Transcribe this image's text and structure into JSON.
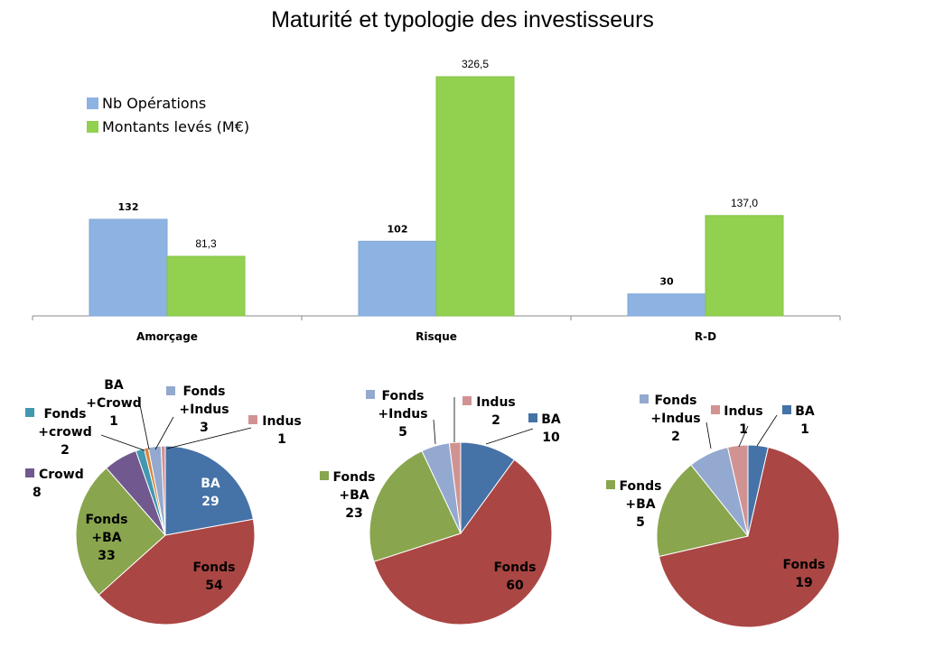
{
  "title": "Maturité et typologie des investisseurs",
  "colors": {
    "nb": "#8DB3E2",
    "montants": "#92D050",
    "BA": "#4572A7",
    "Fonds": "#AA4643",
    "Fonds+BA": "#89A54E",
    "Crowd": "#71588F",
    "Fonds+crowd": "#4198AF",
    "BA+Crowd": "#DB843D",
    "Fonds+Indus": "#93A9CF",
    "Indus": "#D19392"
  },
  "chart_data": [
    {
      "type": "bar",
      "categories": [
        "Amorçage",
        "Risque",
        "R-D"
      ],
      "series": [
        {
          "name": "Nb Opérations",
          "values": [
            132,
            102,
            30
          ],
          "labels": [
            "132",
            "102",
            "30"
          ],
          "color_key": "nb"
        },
        {
          "name": "Montants levés (M€)",
          "values": [
            81.3,
            326.5,
            137.0
          ],
          "labels": [
            "81,3",
            "326,5",
            "137,0"
          ],
          "color_key": "montants"
        }
      ],
      "legend": "top-left"
    },
    {
      "type": "pie",
      "category": "Amorçage",
      "slices": [
        {
          "key": "BA",
          "lines": [
            "BA"
          ],
          "value": 29,
          "color_key": "BA"
        },
        {
          "key": "Fonds",
          "lines": [
            "Fonds"
          ],
          "value": 54,
          "color_key": "Fonds"
        },
        {
          "key": "Fonds+BA",
          "lines": [
            "Fonds",
            "+BA"
          ],
          "value": 33,
          "color_key": "Fonds+BA"
        },
        {
          "key": "Crowd",
          "lines": [
            "Crowd"
          ],
          "value": 8,
          "color_key": "Crowd"
        },
        {
          "key": "Fonds+crowd",
          "lines": [
            "Fonds",
            "+crowd"
          ],
          "value": 2,
          "color_key": "Fonds+crowd"
        },
        {
          "key": "BA+Crowd",
          "lines": [
            "BA",
            "+Crowd"
          ],
          "value": 1,
          "color_key": "BA+Crowd"
        },
        {
          "key": "Fonds+Indus",
          "lines": [
            "Fonds",
            "+Indus"
          ],
          "value": 3,
          "color_key": "Fonds+Indus"
        },
        {
          "key": "Indus",
          "lines": [
            "Indus"
          ],
          "value": 1,
          "color_key": "Indus"
        }
      ]
    },
    {
      "type": "pie",
      "category": "Risque",
      "slices": [
        {
          "key": "BA",
          "lines": [
            "BA"
          ],
          "value": 10,
          "color_key": "BA"
        },
        {
          "key": "Fonds",
          "lines": [
            "Fonds"
          ],
          "value": 60,
          "color_key": "Fonds"
        },
        {
          "key": "Fonds+BA",
          "lines": [
            "Fonds",
            "+BA"
          ],
          "value": 23,
          "color_key": "Fonds+BA"
        },
        {
          "key": "Fonds+Indus",
          "lines": [
            "Fonds",
            "+Indus"
          ],
          "value": 5,
          "color_key": "Fonds+Indus"
        },
        {
          "key": "Indus",
          "lines": [
            "Indus"
          ],
          "value": 2,
          "color_key": "Indus"
        }
      ]
    },
    {
      "type": "pie",
      "category": "R-D",
      "slices": [
        {
          "key": "BA",
          "lines": [
            "BA"
          ],
          "value": 1,
          "color_key": "BA"
        },
        {
          "key": "Fonds",
          "lines": [
            "Fonds"
          ],
          "value": 19,
          "color_key": "Fonds"
        },
        {
          "key": "Fonds+BA",
          "lines": [
            "Fonds",
            "+BA"
          ],
          "value": 5,
          "color_key": "Fonds+BA"
        },
        {
          "key": "Fonds+Indus",
          "lines": [
            "Fonds",
            "+Indus"
          ],
          "value": 2,
          "color_key": "Fonds+Indus"
        },
        {
          "key": "Indus",
          "lines": [
            "Indus"
          ],
          "value": 1,
          "color_key": "Indus"
        }
      ]
    }
  ]
}
